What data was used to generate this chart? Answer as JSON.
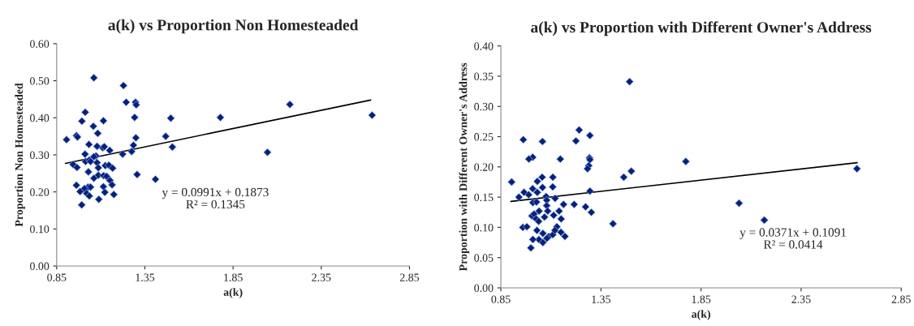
{
  "chart_data": [
    {
      "type": "scatter",
      "title": "a(k) vs Proportion Non Homesteaded",
      "xlabel": "a(k)",
      "ylabel": "Proportion Non Homesteaded",
      "annotations": [
        "y = 0.0991x + 0.1873\nR² = 0.1345"
      ],
      "xlim": [
        0.85,
        2.85
      ],
      "xticks": [
        0.85,
        1.35,
        1.85,
        2.35,
        2.85
      ],
      "ylim": [
        0,
        0.6
      ],
      "yticks": [
        {
          "value": 0,
          "label": "0.00"
        },
        {
          "value": 0.1,
          "label": "0.10"
        },
        {
          "value": 0.2,
          "label": "0.20"
        },
        {
          "value": 0.3,
          "label": "0.30"
        },
        {
          "value": 0.4,
          "label": "0.40"
        },
        {
          "value": 0.5,
          "label": "0.50"
        },
        {
          "value": 0.6,
          "label": "0.60"
        }
      ],
      "grid": false,
      "series": [
        {
          "color": "#0a1f7a",
          "marker": "diamond",
          "x": [
            1.061,
            1.229,
            1.244,
            1.297,
            1.301,
            1.012,
            1.292,
            1.497,
            0.993,
            1.115,
            1.058,
            1.083,
            0.906,
            0.962,
            0.968,
            1.299,
            1.468,
            1.033,
            1.285,
            1.079,
            1.111,
            1.12,
            1.151,
            1.506,
            1.011,
            1.224,
            1.275,
            1.073,
            1.061,
            0.943,
            0.965,
            1.014,
            1.035,
            1.042,
            1.079,
            1.126,
            1.146,
            1.167,
            1.086,
            1.03,
            1.306,
            1.41,
            1.086,
            1.061,
            1.116,
            1.133,
            1.152,
            1.164,
            0.962,
            1.028,
            1.042,
            1.008,
            1.115,
            0.983,
            1.123,
            1.02,
            1.035,
            1.174,
            1.089,
            0.992,
            1.778,
            2.172,
            2.045,
            2.638
          ],
          "values": [
            0.508,
            0.487,
            0.442,
            0.442,
            0.435,
            0.415,
            0.401,
            0.399,
            0.391,
            0.392,
            0.377,
            0.358,
            0.341,
            0.352,
            0.348,
            0.346,
            0.35,
            0.328,
            0.326,
            0.323,
            0.319,
            0.322,
            0.312,
            0.321,
            0.302,
            0.302,
            0.309,
            0.297,
            0.295,
            0.274,
            0.266,
            0.282,
            0.286,
            0.282,
            0.279,
            0.271,
            0.272,
            0.264,
            0.265,
            0.254,
            0.247,
            0.234,
            0.245,
            0.237,
            0.244,
            0.242,
            0.231,
            0.219,
            0.218,
            0.213,
            0.213,
            0.209,
            0.214,
            0.201,
            0.199,
            0.196,
            0.189,
            0.193,
            0.18,
            0.165,
            0.401,
            0.436,
            0.307,
            0.407
          ]
        },
        {
          "type": "line",
          "color": "#000000",
          "x": [
            0.9,
            2.63
          ],
          "values": [
            0.277,
            0.448
          ],
          "marker": "none"
        }
      ]
    },
    {
      "type": "scatter",
      "title": "a(k) vs Proportion with Different Owner's Address",
      "xlabel": "a(k)",
      "ylabel": "Proportion with Different Owner's Address",
      "annotations": [
        "y = 0.0371x + 0.1091\nR² = 0.0414"
      ],
      "xlim": [
        0.85,
        2.85
      ],
      "xticks": [
        0.85,
        1.35,
        1.85,
        2.35,
        2.85
      ],
      "ylim": [
        0,
        0.4
      ],
      "yticks": [
        {
          "value": 0,
          "label": "0.00"
        },
        {
          "value": 0.05,
          "label": "0.05"
        },
        {
          "value": 0.1,
          "label": "0.10"
        },
        {
          "value": 0.15,
          "label": "0.15"
        },
        {
          "value": 0.2,
          "label": "0.20"
        },
        {
          "value": 0.25,
          "label": "0.25"
        },
        {
          "value": 0.3,
          "label": "0.30"
        },
        {
          "value": 0.35,
          "label": "0.35"
        },
        {
          "value": 0.4,
          "label": "0.40"
        }
      ],
      "grid": false,
      "series": [
        {
          "color": "#0a1f7a",
          "marker": "diamond",
          "x": [
            1.493,
            1.241,
            1.295,
            0.962,
            1.225,
            1.058,
            1.009,
            0.99,
            1.147,
            1.293,
            1.295,
            1.289,
            1.283,
            1.464,
            1.502,
            0.904,
            1.056,
            1.11,
            1.032,
            1.058,
            1.109,
            1.009,
            0.966,
            1.032,
            0.989,
            0.94,
            1.076,
            1.121,
            1.295,
            1.079,
            1.01,
            1.028,
            1.079,
            1.163,
            1.216,
            1.273,
            1.302,
            1.041,
            1.084,
            1.141,
            1.005,
            1.016,
            1.068,
            1.114,
            1.026,
            1.039,
            1.151,
            1.41,
            1.774,
            2.04,
            2.166,
            2.629,
            0.96,
            0.98,
            1.13,
            1.03,
            1.06,
            1.09,
            1.11,
            1.15,
            1.17,
            1.04,
            1.06,
            1.01,
            1.0,
            1.08,
            1.12
          ],
          "values": [
            0.341,
            0.261,
            0.252,
            0.245,
            0.243,
            0.242,
            0.216,
            0.213,
            0.213,
            0.215,
            0.212,
            0.202,
            0.197,
            0.183,
            0.193,
            0.175,
            0.183,
            0.183,
            0.176,
            0.166,
            0.167,
            0.164,
            0.158,
            0.158,
            0.154,
            0.15,
            0.151,
            0.148,
            0.16,
            0.145,
            0.141,
            0.142,
            0.136,
            0.138,
            0.138,
            0.134,
            0.125,
            0.127,
            0.127,
            0.127,
            0.119,
            0.122,
            0.117,
            0.12,
            0.114,
            0.11,
            0.114,
            0.106,
            0.209,
            0.14,
            0.112,
            0.197,
            0.1,
            0.101,
            0.101,
            0.095,
            0.09,
            0.085,
            0.088,
            0.092,
            0.085,
            0.08,
            0.075,
            0.08,
            0.066,
            0.082,
            0.095
          ]
        },
        {
          "type": "line",
          "color": "#000000",
          "x": [
            0.9,
            2.63
          ],
          "values": [
            0.143,
            0.207
          ],
          "marker": "none"
        }
      ]
    }
  ]
}
